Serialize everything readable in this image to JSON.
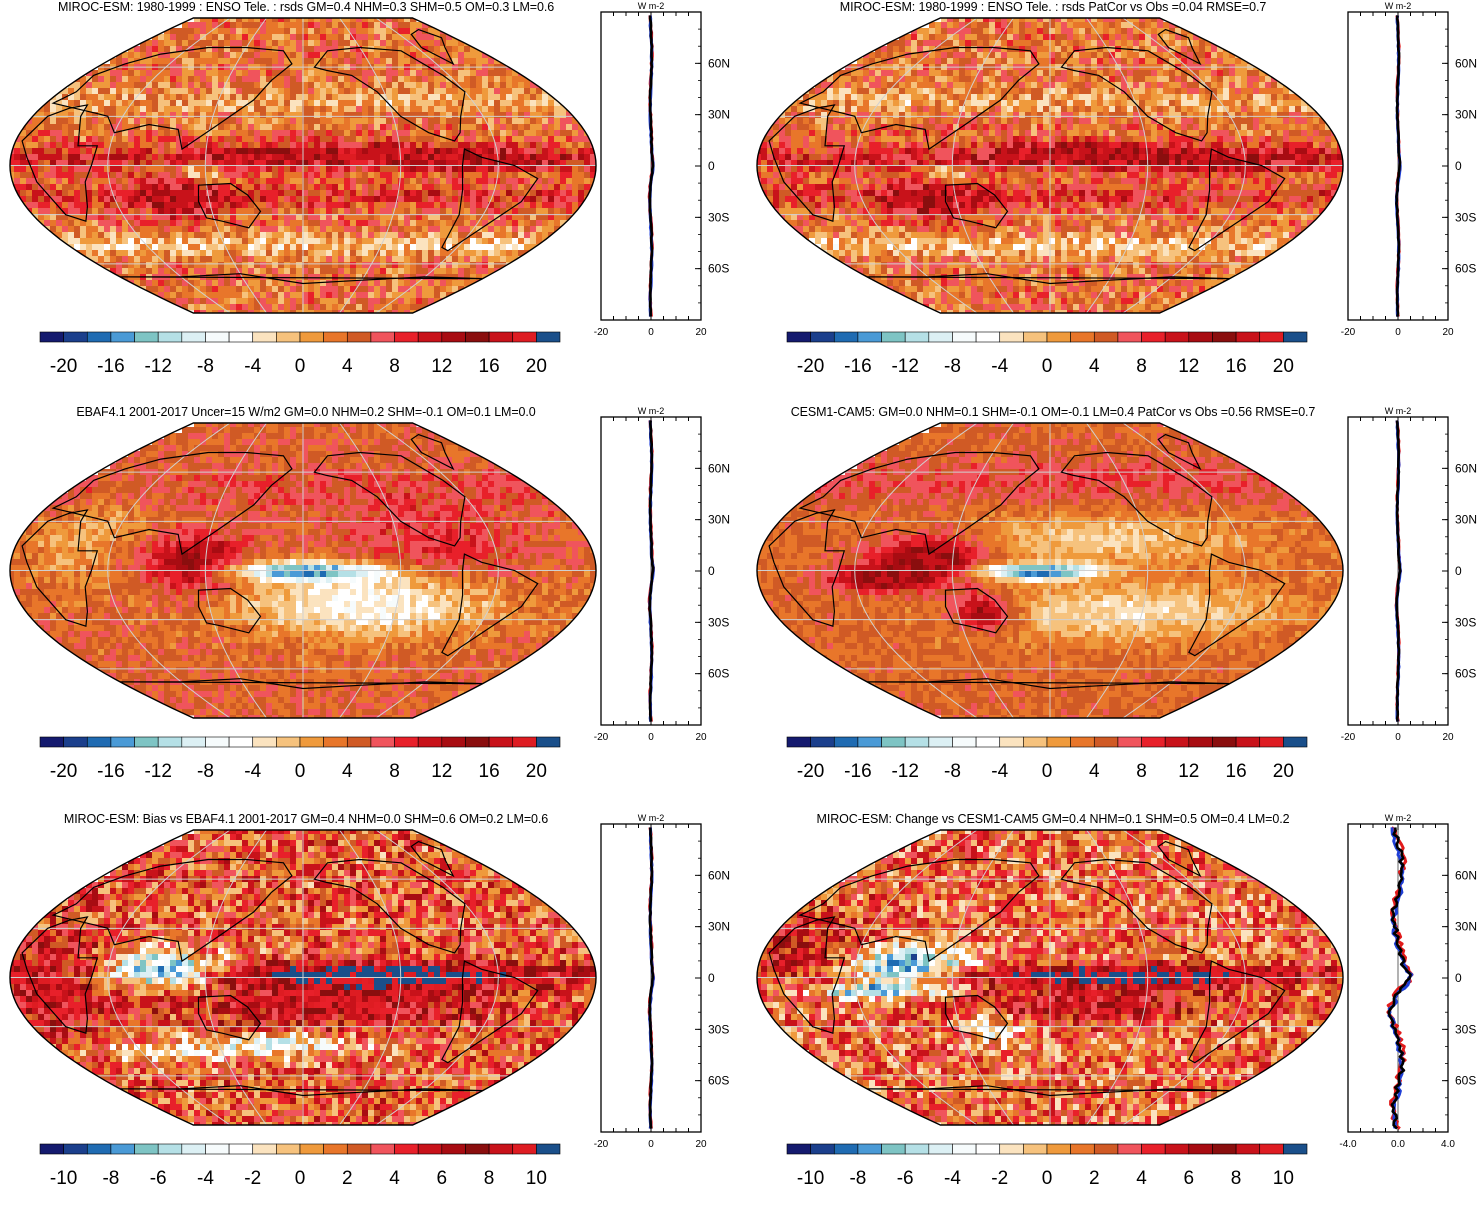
{
  "colors": {
    "neg": [
      "#141a6e",
      "#1b3f8c",
      "#1f6bb2",
      "#4a9ad6",
      "#7ec4c4",
      "#b5e0e6",
      "#dcf0f4",
      "#f6fbfc"
    ],
    "pos": [
      "#ffffff",
      "#fbe3bf",
      "#f6c27d",
      "#ef9a3c",
      "#e8762a",
      "#d05a25",
      "#f0545c",
      "#e8202a",
      "#c8121a",
      "#a80c12",
      "#8a0e0e",
      "#c8121a",
      "#de1c22",
      "#e41e26"
    ],
    "cap": "#1a4f8a",
    "profile_model": "#e11b1b",
    "profile_obs": "#1f3fd6",
    "profile_mean": "#000000"
  },
  "panels": [
    {
      "title": "MIROC-ESM: 1980-1999 : ENSO Tele. : rsds GM=0.4 NHM=0.3 SHM=0.5 OM=0.3 LM=0.6",
      "colorbar_labels": [
        "-20",
        "-16",
        "-12",
        "-8",
        "-4",
        "0",
        "4",
        "8",
        "12",
        "16",
        "20"
      ],
      "zonal_unit": "W m-2",
      "zonal_x_ticks": [
        "-20",
        "0",
        "20"
      ],
      "lat_labels": [
        "60N",
        "30N",
        "0",
        "30S",
        "60S"
      ],
      "pattern": "model_mean"
    },
    {
      "title": "MIROC-ESM: 1980-1999 : ENSO Tele. : rsds PatCor vs Obs =0.04 RMSE=0.7",
      "colorbar_labels": [
        "-20",
        "-16",
        "-12",
        "-8",
        "-4",
        "0",
        "4",
        "8",
        "12",
        "16",
        "20"
      ],
      "zonal_unit": "W m-2",
      "zonal_x_ticks": [
        "-20",
        "0",
        "20"
      ],
      "lat_labels": [
        "60N",
        "30N",
        "0",
        "30S",
        "60S"
      ],
      "pattern": "model_mean"
    },
    {
      "title": "EBAF4.1 2001-2017 Uncer=15 W/m2 GM=0.0 NHM=0.2 SHM=-0.1 OM=0.1 LM=0.0",
      "colorbar_labels": [
        "-20",
        "-16",
        "-12",
        "-8",
        "-4",
        "0",
        "4",
        "8",
        "12",
        "16",
        "20"
      ],
      "zonal_unit": "W m-2",
      "zonal_x_ticks": [
        "-20",
        "0",
        "20"
      ],
      "lat_labels": [
        "60N",
        "30N",
        "0",
        "30S",
        "60S"
      ],
      "pattern": "obs"
    },
    {
      "title": "CESM1-CAM5: GM=0.0 NHM=0.1 SHM=-0.1 OM=-0.1 LM=0.4 PatCor vs Obs =0.56 RMSE=0.7",
      "colorbar_labels": [
        "-20",
        "-16",
        "-12",
        "-8",
        "-4",
        "0",
        "4",
        "8",
        "12",
        "16",
        "20"
      ],
      "zonal_unit": "W m-2",
      "zonal_x_ticks": [
        "-20",
        "0",
        "20"
      ],
      "lat_labels": [
        "60N",
        "30N",
        "0",
        "30S",
        "60S"
      ],
      "pattern": "cesm"
    },
    {
      "title": "MIROC-ESM: Bias vs EBAF4.1 2001-2017 GM=0.4 NHM=0.0 SHM=0.6 OM=0.2 LM=0.6",
      "colorbar_labels": [
        "-10",
        "-8",
        "-6",
        "-4",
        "-2",
        "0",
        "2",
        "4",
        "6",
        "8",
        "10"
      ],
      "zonal_unit": "W m-2",
      "zonal_x_ticks": [
        "-20",
        "0",
        "20"
      ],
      "lat_labels": [
        "60N",
        "30N",
        "0",
        "30S",
        "60S"
      ],
      "pattern": "bias"
    },
    {
      "title": "MIROC-ESM: Change vs CESM1-CAM5 GM=0.4 NHM=0.1 SHM=0.5 OM=0.4 LM=0.2",
      "colorbar_labels": [
        "-10",
        "-8",
        "-6",
        "-4",
        "-2",
        "0",
        "2",
        "4",
        "6",
        "8",
        "10"
      ],
      "zonal_unit": "W m-2",
      "zonal_x_ticks": [
        "-4.0",
        "0.0",
        "4.0"
      ],
      "lat_labels": [
        "60N",
        "30N",
        "0",
        "30S",
        "60S"
      ],
      "pattern": "change"
    }
  ]
}
